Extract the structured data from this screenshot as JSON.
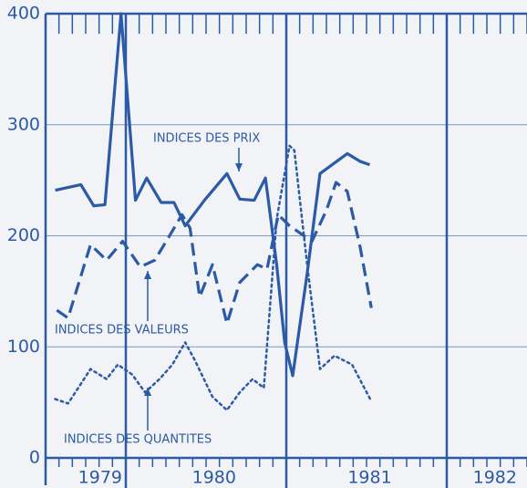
{
  "chart_data": {
    "type": "line",
    "annotations": [
      "INDICES DES PRIX",
      "INDICES DES VALEURS",
      "INDICES DES QUANTITES"
    ],
    "color": "#2b5aa6",
    "xlim": [
      1979.5,
      1982.5
    ],
    "xticks": [
      {
        "value": 1979.84,
        "label": "1979"
      },
      {
        "value": 1980.55,
        "label": "1980"
      },
      {
        "value": 1981.52,
        "label": "1981"
      },
      {
        "value": 1982.3,
        "label": "1982"
      }
    ],
    "xgrid": [
      1980,
      1981,
      1982
    ],
    "ylim": [
      0,
      400
    ],
    "yticks": [
      0,
      100,
      200,
      300,
      400
    ],
    "grid": true,
    "series": [
      {
        "dash": "solid",
        "x": [
          1979.56,
          1979.72,
          1979.8,
          1979.87,
          1979.97,
          1980.06,
          1980.13,
          1980.22,
          1980.3,
          1980.37,
          1980.49,
          1980.63,
          1980.71,
          1980.8,
          1980.87,
          1980.94,
          1980.99,
          1981.04,
          1981.13,
          1981.21,
          1981.38,
          1981.46,
          1981.52
        ],
        "values": [
          241,
          246,
          227,
          228,
          400,
          232,
          252,
          230,
          230,
          209,
          232,
          256,
          233,
          232,
          252,
          174,
          104,
          74,
          166,
          256,
          274,
          267,
          264
        ]
      },
      {
        "dash": "dashed",
        "x": [
          1979.57,
          1979.64,
          1979.78,
          1979.88,
          1979.98,
          1980.09,
          1980.18,
          1980.26,
          1980.35,
          1980.4,
          1980.46,
          1980.54,
          1980.63,
          1980.71,
          1980.82,
          1980.88,
          1980.95,
          1981.02,
          1981.16,
          1981.25,
          1981.31,
          1981.38,
          1981.46,
          1981.53
        ],
        "values": [
          133,
          126,
          192,
          178,
          195,
          172,
          178,
          197,
          219,
          207,
          145,
          174,
          121,
          158,
          174,
          170,
          219,
          209,
          195,
          223,
          248,
          240,
          190,
          135
        ]
      },
      {
        "dash": "dotted",
        "x": [
          1979.56,
          1979.64,
          1979.78,
          1979.88,
          1979.95,
          1980.04,
          1980.12,
          1980.21,
          1980.29,
          1980.37,
          1980.43,
          1980.54,
          1980.63,
          1980.71,
          1980.79,
          1980.86,
          1980.94,
          1981.02,
          1981.05,
          1981.13,
          1981.21,
          1981.3,
          1981.41,
          1981.53
        ],
        "values": [
          53,
          49,
          80,
          71,
          84,
          75,
          59,
          71,
          84,
          104,
          88,
          55,
          43,
          59,
          71,
          63,
          215,
          281,
          277,
          174,
          80,
          92,
          84,
          51
        ]
      }
    ]
  }
}
